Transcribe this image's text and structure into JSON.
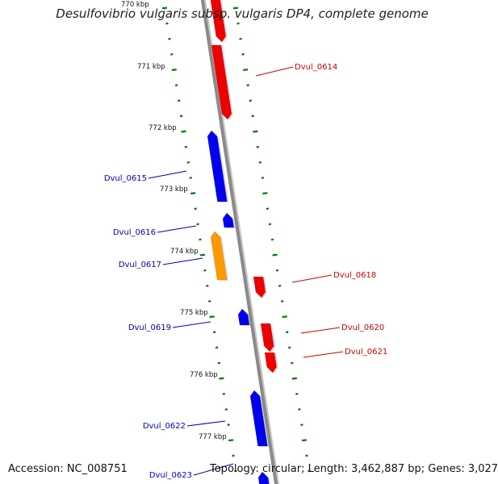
{
  "title": "Desulfovibrio vulgaris subsp. vulgaris DP4, complete genome",
  "footer": {
    "accession": "Accession: NC_008751",
    "summary": "Topology: circular; Length: 3,462,887 bp; Genes: 3,027"
  },
  "colors": {
    "forward": "#ee0000",
    "reverse": "#0000ee",
    "other": "#ff9900",
    "backbone": "#8a8a8a",
    "ticks": "#007700",
    "forward_label": "#cc0000",
    "reverse_label": "#0000bb"
  },
  "tick_labels": [
    "770 kbp",
    "771 kbp",
    "772 kbp",
    "773 kbp",
    "774 kbp",
    "775 kbp",
    "776 kbp",
    "777 kbp"
  ],
  "genes": [
    {
      "name": "Dvul_0614",
      "strand": "+",
      "label": "Dvul_0614"
    },
    {
      "name": "Dvul_0615",
      "strand": "-",
      "label": "Dvul_0615"
    },
    {
      "name": "Dvul_0616",
      "strand": "-",
      "label": "Dvul_0616"
    },
    {
      "name": "Dvul_0617",
      "strand": "-",
      "type": "other",
      "label": "Dvul_0617"
    },
    {
      "name": "Dvul_0618",
      "strand": "+",
      "label": "Dvul_0618"
    },
    {
      "name": "Dvul_0619",
      "strand": "-",
      "label": "Dvul_0619"
    },
    {
      "name": "Dvul_0620",
      "strand": "+",
      "label": "Dvul_0620"
    },
    {
      "name": "Dvul_0621",
      "strand": "+",
      "label": "Dvul_0621"
    },
    {
      "name": "Dvul_0622",
      "strand": "-",
      "label": "Dvul_0622"
    },
    {
      "name": "Dvul_0623",
      "strand": "-",
      "label": "Dvul_0623"
    }
  ]
}
